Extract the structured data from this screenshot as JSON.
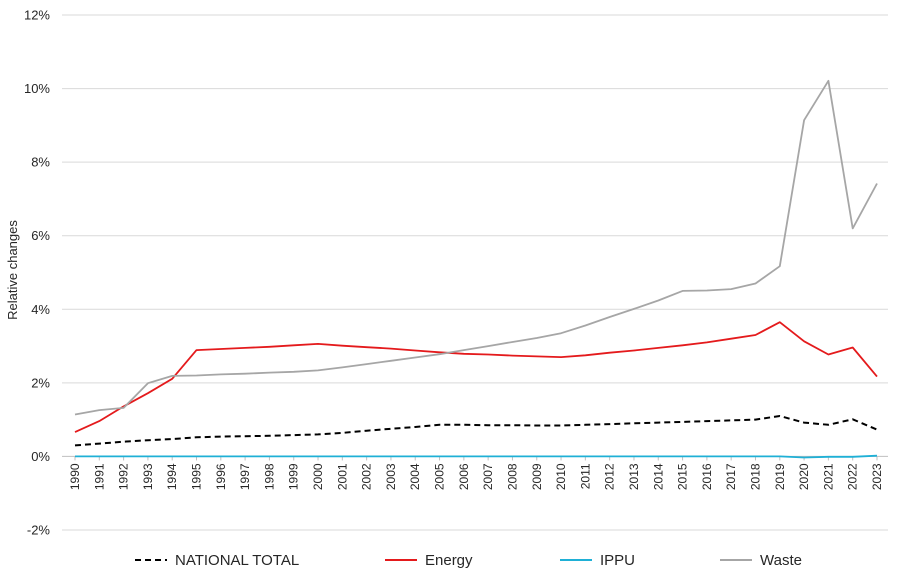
{
  "chart_data": {
    "type": "line",
    "title": "",
    "xlabel": "",
    "ylabel": "Relative changes",
    "ylim": [
      -2,
      12
    ],
    "yticks": [
      -2,
      0,
      2,
      4,
      6,
      8,
      10,
      12
    ],
    "ytick_labels": [
      "-2%",
      "0%",
      "2%",
      "4%",
      "6%",
      "8%",
      "10%",
      "12%"
    ],
    "grid": "horizontal",
    "legend_position": "bottom",
    "x": [
      "1990",
      "1991",
      "1992",
      "1993",
      "1994",
      "1995",
      "1996",
      "1997",
      "1998",
      "1999",
      "2000",
      "2001",
      "2002",
      "2003",
      "2004",
      "2005",
      "2006",
      "2007",
      "2008",
      "2009",
      "2010",
      "2011",
      "2012",
      "2013",
      "2014",
      "2015",
      "2016",
      "2017",
      "2018",
      "2019",
      "2020",
      "2021",
      "2022",
      "2023"
    ],
    "series": [
      {
        "name": "NATIONAL TOTAL",
        "color": "#000000",
        "dash": "dashed",
        "values": [
          0.3,
          0.35,
          0.4,
          0.44,
          0.47,
          0.52,
          0.54,
          0.55,
          0.56,
          0.58,
          0.6,
          0.64,
          0.7,
          0.75,
          0.8,
          0.86,
          0.86,
          0.85,
          0.85,
          0.84,
          0.84,
          0.86,
          0.88,
          0.9,
          0.92,
          0.94,
          0.96,
          0.98,
          1.0,
          1.1,
          0.92,
          0.86,
          1.01,
          0.73
        ]
      },
      {
        "name": "Energy",
        "color": "#e41a1c",
        "dash": "solid",
        "values": [
          0.66,
          0.96,
          1.36,
          1.72,
          2.11,
          2.89,
          2.92,
          2.95,
          2.98,
          3.02,
          3.06,
          3.01,
          2.97,
          2.93,
          2.88,
          2.83,
          2.79,
          2.77,
          2.74,
          2.72,
          2.7,
          2.75,
          2.82,
          2.88,
          2.95,
          3.02,
          3.1,
          3.2,
          3.3,
          3.65,
          3.13,
          2.77,
          2.96,
          2.17
        ]
      },
      {
        "name": "IPPU",
        "color": "#1fb0d6",
        "dash": "solid",
        "values": [
          0.0,
          0.0,
          0.0,
          0.0,
          0.0,
          0.0,
          0.0,
          0.0,
          0.0,
          0.0,
          0.0,
          0.0,
          0.0,
          0.0,
          0.0,
          0.0,
          0.0,
          0.0,
          0.0,
          0.0,
          0.0,
          0.0,
          0.0,
          0.0,
          0.0,
          0.0,
          0.0,
          0.0,
          0.0,
          0.0,
          -0.03,
          -0.01,
          -0.01,
          0.02
        ]
      },
      {
        "name": "Waste",
        "color": "#a6a6a6",
        "dash": "solid",
        "values": [
          1.14,
          1.26,
          1.32,
          1.99,
          2.19,
          2.2,
          2.23,
          2.25,
          2.28,
          2.3,
          2.34,
          2.42,
          2.51,
          2.6,
          2.69,
          2.78,
          2.89,
          3.0,
          3.11,
          3.22,
          3.35,
          3.56,
          3.79,
          4.01,
          4.24,
          4.5,
          4.51,
          4.55,
          4.7,
          5.17,
          9.14,
          10.21,
          6.2,
          7.42
        ]
      }
    ]
  }
}
